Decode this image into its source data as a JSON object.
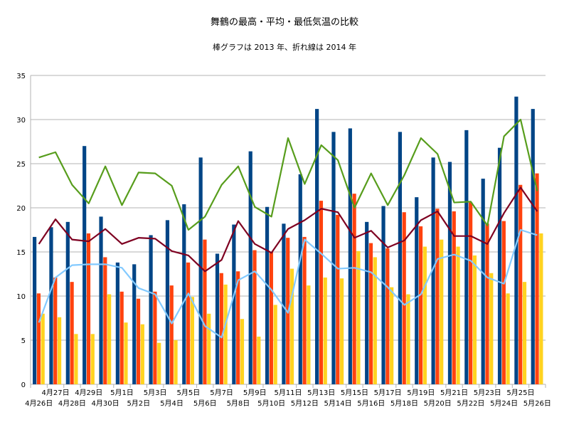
{
  "chart_data": {
    "type": "bar",
    "title": "舞鶴の最高・平均・最低気温の比較",
    "subtitle": "棒グラフは 2013 年、折れ線は 2014 年",
    "ylim": [
      0,
      35
    ],
    "y_ticks": [
      "0",
      "5",
      "10",
      "15",
      "20",
      "25",
      "30",
      "35"
    ],
    "grid": true,
    "categories": [
      "4月26日",
      "4月27日",
      "4月28日",
      "4月29日",
      "4月30日",
      "5月1日",
      "5月2日",
      "5月3日",
      "5月4日",
      "5月5日",
      "5月6日",
      "5月7日",
      "5月8日",
      "5月9日",
      "5月10日",
      "5月11日",
      "5月12日",
      "5月13日",
      "5月14日",
      "5月15日",
      "5月16日",
      "5月17日",
      "5月18日",
      "5月19日",
      "5月20日",
      "5月21日",
      "5月22日",
      "5月23日",
      "5月24日",
      "5月25日",
      "5月26日"
    ],
    "bar_series": [
      {
        "color": "#004586",
        "values": [
          16.7,
          17.8,
          18.4,
          27.0,
          19.0,
          13.8,
          13.6,
          16.9,
          18.6,
          20.4,
          25.7,
          14.8,
          18.1,
          26.4,
          20.1,
          18.2,
          23.8,
          31.2,
          28.6,
          29.0,
          18.4,
          20.2,
          28.6,
          21.2,
          25.7,
          25.2,
          28.8,
          23.3,
          26.8,
          32.6,
          31.2
        ]
      },
      {
        "color": "#ff420e",
        "values": [
          10.3,
          12.1,
          11.6,
          17.1,
          14.4,
          10.5,
          9.7,
          10.5,
          11.2,
          13.8,
          16.4,
          12.6,
          12.8,
          15.2,
          15.0,
          16.6,
          16.7,
          20.8,
          19.2,
          21.6,
          16.0,
          15.4,
          19.5,
          17.9,
          19.9,
          19.6,
          20.6,
          18.2,
          18.5,
          22.6,
          23.9
        ]
      },
      {
        "color": "#ffd320",
        "values": [
          8.0,
          7.6,
          5.7,
          5.7,
          10.2,
          7.0,
          6.8,
          4.7,
          5.0,
          9.9,
          8.0,
          11.3,
          7.4,
          5.4,
          9.0,
          13.1,
          11.2,
          12.1,
          12.0,
          15.1,
          14.4,
          11.0,
          10.2,
          15.6,
          16.4,
          15.6,
          14.6,
          12.6,
          10.3,
          11.6,
          17.1
        ]
      }
    ],
    "line_series": [
      {
        "color": "#579d1c",
        "values": [
          25.7,
          26.3,
          22.6,
          20.5,
          24.7,
          20.3,
          24.0,
          23.9,
          22.5,
          17.5,
          19.0,
          22.6,
          24.7,
          20.1,
          19.0,
          27.9,
          22.7,
          27.1,
          25.4,
          20.0,
          23.9,
          20.3,
          23.7,
          27.9,
          26.1,
          20.6,
          20.7,
          18.0,
          28.1,
          30.0,
          21.9
        ]
      },
      {
        "color": "#7e0021",
        "values": [
          15.9,
          18.7,
          16.4,
          16.2,
          17.6,
          15.9,
          16.6,
          16.5,
          15.1,
          14.6,
          12.8,
          14.1,
          18.5,
          15.9,
          14.9,
          17.6,
          18.6,
          19.9,
          19.5,
          16.6,
          17.4,
          15.5,
          16.3,
          18.6,
          19.6,
          16.8,
          16.8,
          15.9,
          19.4,
          22.3,
          19.6
        ]
      },
      {
        "color": "#83caff",
        "values": [
          7.0,
          12.1,
          13.5,
          13.6,
          13.6,
          13.2,
          10.9,
          10.2,
          6.9,
          10.3,
          6.6,
          5.3,
          11.8,
          12.8,
          10.7,
          8.1,
          16.4,
          14.8,
          13.1,
          13.2,
          12.7,
          11.0,
          9.0,
          10.2,
          14.2,
          14.7,
          14.0,
          12.1,
          11.4,
          17.5,
          16.9
        ]
      }
    ]
  }
}
